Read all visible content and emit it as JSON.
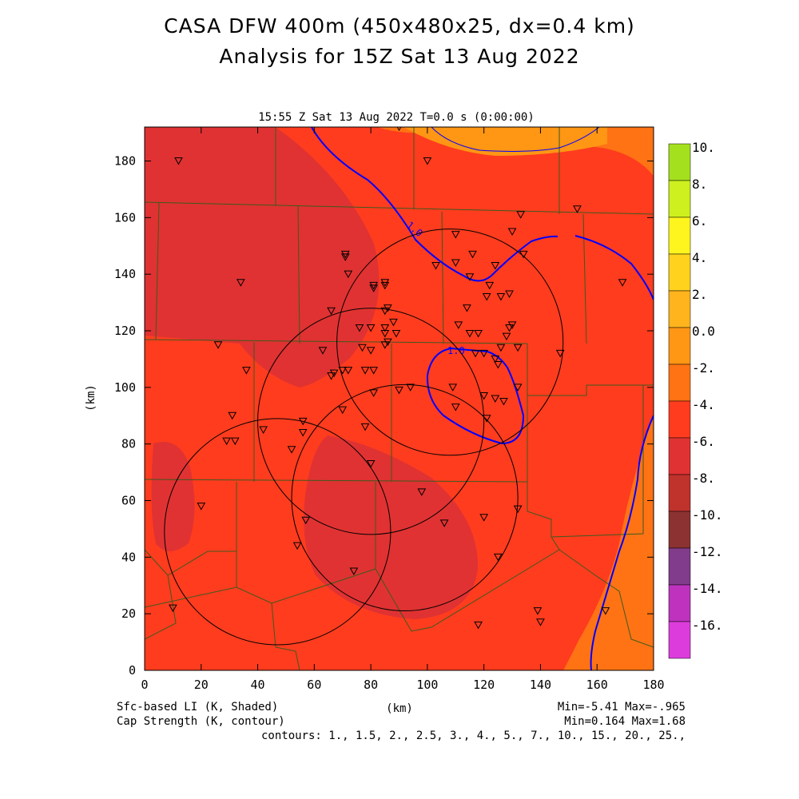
{
  "title_line1": "CASA DFW 400m (450x480x25, dx=0.4 km)",
  "title_line2": "Analysis for 15Z Sat 13 Aug 2022",
  "plot_header": "15:55 Z Sat 13 Aug 2022    T=0.0 s (0:00:00)",
  "x_axis_label": "(km)",
  "y_axis_label": "(km)",
  "x_ticks": [
    0,
    20,
    40,
    60,
    80,
    100,
    120,
    140,
    160,
    180
  ],
  "y_ticks": [
    0,
    20,
    40,
    60,
    80,
    100,
    120,
    140,
    160,
    180
  ],
  "shaded_field": "Sfc-based LI (K, Shaded)",
  "contour_field": "Cap Strength (K, contour)",
  "shaded_minmax": "Min=-5.41 Max=-.965",
  "contour_minmax": "Min=0.164 Max=1.68",
  "contours_text": "contours: 1., 1.5, 2., 2.5, 3., 4., 5., 7., 10., 15., 20., 25.,",
  "contour_label_1": "1.0",
  "contour_label_2": "1.0",
  "colorbar": {
    "labels": [
      "10.",
      "8.",
      "6.",
      "4.",
      "2.",
      "0.0",
      "-2.",
      "-4.",
      "-6.",
      "-8.",
      "-10.",
      "-12.",
      "-14.",
      "-16."
    ],
    "colors": [
      "#a5e01e",
      "#cdf01e",
      "#fff51e",
      "#ffd21e",
      "#ffb41e",
      "#ff9614",
      "#ff7314",
      "#ff3c1e",
      "#e03232",
      "#c0322c",
      "#8c3232",
      "#823c8c",
      "#be32be",
      "#dc3cdc"
    ]
  },
  "chart_data": {
    "type": "map",
    "x_range_km": [
      0,
      180
    ],
    "y_range_km": [
      0,
      192
    ],
    "radar_rings_km": [
      {
        "cx": 108,
        "cy": 116,
        "r": 40
      },
      {
        "cx": 80,
        "cy": 88,
        "r": 40
      },
      {
        "cx": 92,
        "cy": 61,
        "r": 40
      },
      {
        "cx": 47,
        "cy": 49,
        "r": 40
      }
    ],
    "stations_km": [
      [
        12,
        180
      ],
      [
        90,
        192
      ],
      [
        100,
        180
      ],
      [
        153,
        163
      ],
      [
        133,
        161
      ],
      [
        130,
        155
      ],
      [
        134,
        147
      ],
      [
        110,
        154
      ],
      [
        116,
        147
      ],
      [
        110,
        144
      ],
      [
        124,
        143
      ],
      [
        103,
        143
      ],
      [
        115,
        139
      ],
      [
        122,
        136
      ],
      [
        121,
        132
      ],
      [
        126,
        132
      ],
      [
        129,
        133
      ],
      [
        114,
        128
      ],
      [
        71,
        147
      ],
      [
        71,
        146
      ],
      [
        72,
        140
      ],
      [
        34,
        137
      ],
      [
        81,
        136
      ],
      [
        81,
        135
      ],
      [
        85,
        137
      ],
      [
        85,
        136
      ],
      [
        86,
        128
      ],
      [
        85,
        127
      ],
      [
        66,
        127
      ],
      [
        88,
        123
      ],
      [
        76,
        121
      ],
      [
        80,
        121
      ],
      [
        85,
        121
      ],
      [
        85,
        119
      ],
      [
        89,
        119
      ],
      [
        86,
        116
      ],
      [
        85,
        115
      ],
      [
        111,
        122
      ],
      [
        115,
        119
      ],
      [
        118,
        119
      ],
      [
        129,
        121
      ],
      [
        130,
        122
      ],
      [
        128,
        118
      ],
      [
        126,
        114
      ],
      [
        132,
        114
      ],
      [
        117,
        112
      ],
      [
        120,
        112
      ],
      [
        124,
        110
      ],
      [
        125,
        108
      ],
      [
        147,
        112
      ],
      [
        169,
        137
      ],
      [
        63,
        113
      ],
      [
        77,
        114
      ],
      [
        80,
        113
      ],
      [
        26,
        115
      ],
      [
        36,
        106
      ],
      [
        67,
        105
      ],
      [
        66,
        104
      ],
      [
        70,
        106
      ],
      [
        72,
        106
      ],
      [
        78,
        106
      ],
      [
        81,
        106
      ],
      [
        81,
        98
      ],
      [
        90,
        99
      ],
      [
        94,
        100
      ],
      [
        109,
        100
      ],
      [
        120,
        97
      ],
      [
        124,
        96
      ],
      [
        127,
        95
      ],
      [
        132,
        100
      ],
      [
        110,
        93
      ],
      [
        121,
        89
      ],
      [
        31,
        90
      ],
      [
        70,
        92
      ],
      [
        56,
        88
      ],
      [
        56,
        84
      ],
      [
        78,
        86
      ],
      [
        42,
        85
      ],
      [
        29,
        81
      ],
      [
        32,
        81
      ],
      [
        52,
        78
      ],
      [
        80,
        73
      ],
      [
        98,
        63
      ],
      [
        132,
        57
      ],
      [
        20,
        58
      ],
      [
        57,
        53
      ],
      [
        106,
        52
      ],
      [
        120,
        54
      ],
      [
        54,
        44
      ],
      [
        125,
        40
      ],
      [
        74,
        35
      ],
      [
        10,
        22
      ],
      [
        139,
        21
      ],
      [
        140,
        17
      ],
      [
        118,
        16
      ],
      [
        163,
        21
      ]
    ]
  }
}
